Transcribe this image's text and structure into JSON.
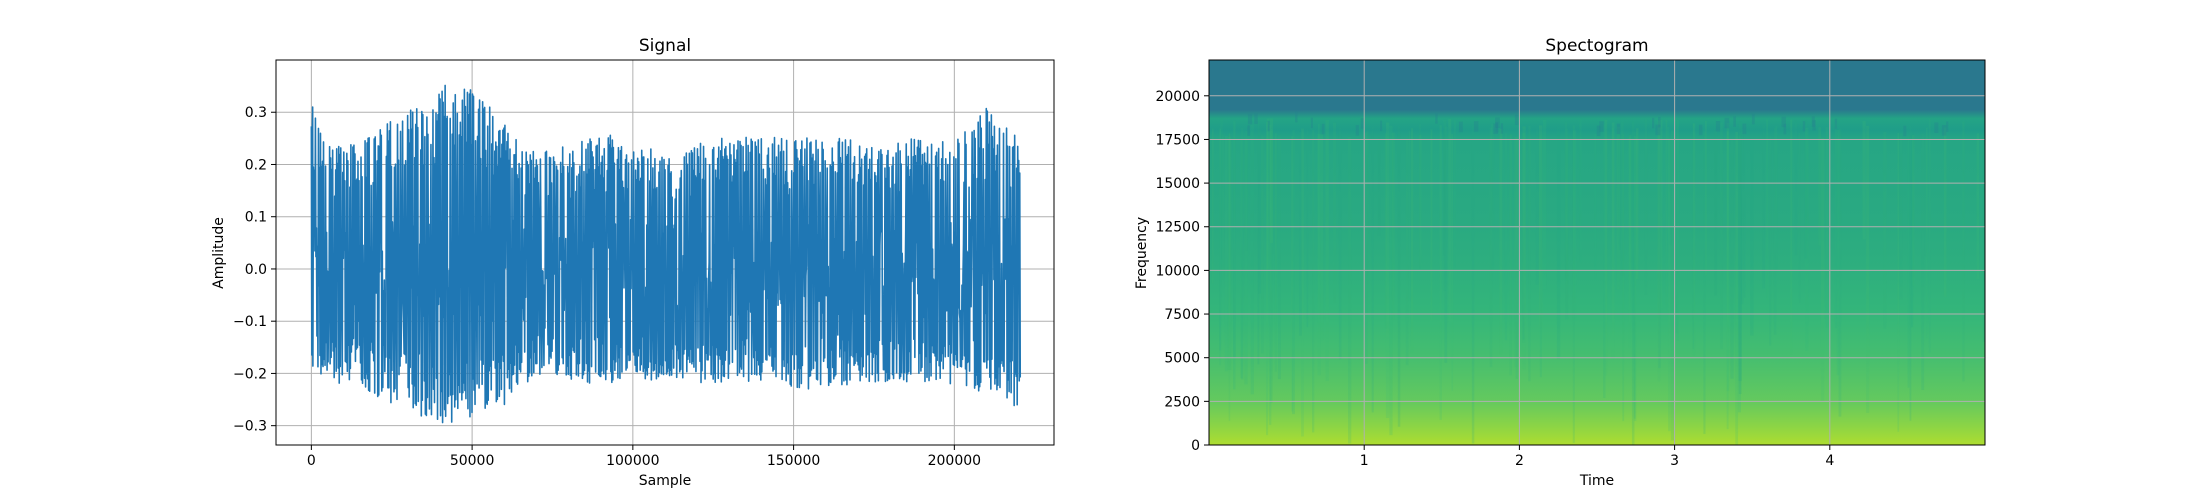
{
  "chart_data": [
    {
      "type": "line",
      "title": "Signal",
      "xlabel": "Sample",
      "ylabel": "Amplitude",
      "xlim": [
        -11000,
        231000
      ],
      "ylim": [
        -0.337,
        0.4
      ],
      "xticks": [
        0,
        50000,
        100000,
        150000,
        200000
      ],
      "xtick_labels": [
        "0",
        "50000",
        "100000",
        "150000",
        "200000"
      ],
      "yticks": [
        -0.3,
        -0.2,
        -0.1,
        0.0,
        0.1,
        0.2,
        0.3
      ],
      "ytick_labels": [
        "−0.3",
        "−0.2",
        "−0.1",
        "0.0",
        "0.1",
        "0.2",
        "0.3"
      ],
      "grid": true,
      "color": "#1f77b4",
      "n_samples": 220500,
      "envelope": {
        "x": [
          0,
          5000,
          15000,
          30000,
          40000,
          50000,
          60000,
          70000,
          80000,
          95000,
          110000,
          125000,
          140000,
          155000,
          170000,
          185000,
          200000,
          210000,
          220500
        ],
        "upper": [
          0.31,
          0.25,
          0.25,
          0.3,
          0.36,
          0.35,
          0.29,
          0.22,
          0.24,
          0.26,
          0.22,
          0.25,
          0.26,
          0.25,
          0.25,
          0.25,
          0.25,
          0.31,
          0.25
        ],
        "lower": [
          -0.19,
          -0.22,
          -0.23,
          -0.27,
          -0.3,
          -0.29,
          -0.26,
          -0.2,
          -0.22,
          -0.22,
          -0.21,
          -0.22,
          -0.22,
          -0.23,
          -0.22,
          -0.22,
          -0.22,
          -0.24,
          -0.27
        ]
      }
    },
    {
      "type": "heatmap",
      "title": "Spectogram",
      "xlabel": "Time",
      "ylabel": "Frequency",
      "xlim": [
        0,
        5.0
      ],
      "ylim": [
        0,
        22050
      ],
      "xticks": [
        1,
        2,
        3,
        4
      ],
      "xtick_labels": [
        "1",
        "2",
        "3",
        "4"
      ],
      "yticks": [
        0,
        2500,
        5000,
        7500,
        10000,
        12500,
        15000,
        17500,
        20000
      ],
      "ytick_labels": [
        "0",
        "2500",
        "5000",
        "7500",
        "10000",
        "12500",
        "15000",
        "17500",
        "20000"
      ],
      "grid": true,
      "colormap": "viridis",
      "frequency_profile": {
        "frequency": [
          0,
          1000,
          2500,
          5000,
          7500,
          10000,
          12500,
          15000,
          17500,
          18000,
          18700,
          19200,
          22050
        ],
        "level": [
          0.88,
          0.83,
          0.76,
          0.7,
          0.66,
          0.63,
          0.61,
          0.6,
          0.59,
          0.55,
          0.58,
          0.4,
          0.4
        ]
      }
    }
  ]
}
